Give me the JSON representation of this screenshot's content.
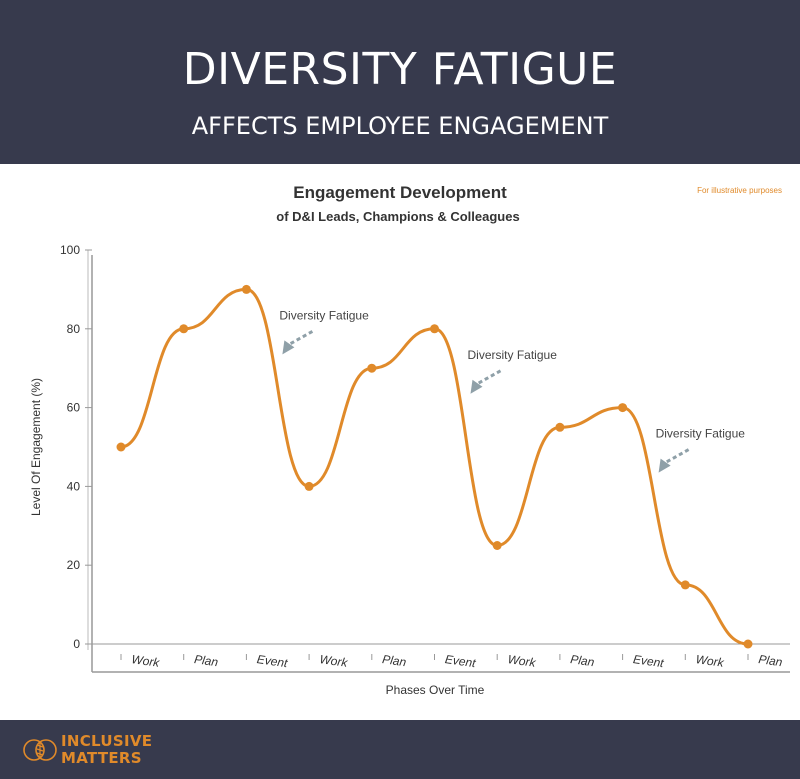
{
  "header": {
    "title": "DIVERSITY FATIGUE",
    "subtitle": "AFFECTS EMPLOYEE ENGAGEMENT"
  },
  "note": "For illustrative purposes",
  "footer": {
    "logo_line1": "INCLUSIVE",
    "logo_line2": "MATTERS"
  },
  "colors": {
    "header_bg": "#373a4d",
    "line": "#e08a2a",
    "arrow": "#8fa0a8"
  },
  "chart_data": {
    "type": "line",
    "title": "Engagement Development",
    "subtitle": "of D&I Leads, Champions & Colleagues",
    "xlabel": "Phases Over Time",
    "ylabel": "Level Of Engagement  (%)",
    "ylim": [
      0,
      100
    ],
    "yticks": [
      0,
      20,
      40,
      60,
      80,
      100
    ],
    "categories": [
      "Work",
      "Plan",
      "Event",
      "Work",
      "Plan",
      "Event",
      "Work",
      "Plan",
      "Event",
      "Work",
      "Plan"
    ],
    "series": [
      {
        "name": "Engagement",
        "values": [
          50,
          80,
          90,
          40,
          70,
          80,
          25,
          55,
          60,
          15,
          0
        ]
      }
    ],
    "annotations": [
      {
        "text": "Diversity Fatigue",
        "near_index": 2
      },
      {
        "text": "Diversity Fatigue",
        "near_index": 5
      },
      {
        "text": "Diversity Fatigue",
        "near_index": 8
      }
    ]
  }
}
